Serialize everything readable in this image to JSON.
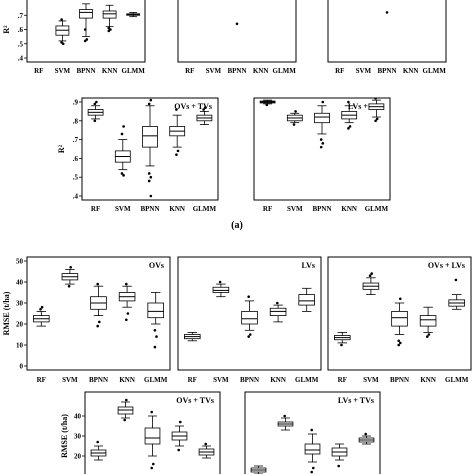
{
  "figure": {
    "caption_a": "(a)",
    "models": [
      "RF",
      "SVM",
      "BPNN",
      "KNN",
      "GLMM"
    ]
  },
  "chart_data": [
    {
      "type": "box",
      "group": "a-row1",
      "title": "",
      "ylabel": "R²",
      "ylim": [
        0.4,
        0.8
      ],
      "yticks": [
        0.4,
        0.5,
        0.6,
        0.7
      ],
      "categories": [
        "RF",
        "SVM",
        "BPNN",
        "KNN",
        "GLMM"
      ],
      "boxes": [
        null,
        {
          "min": 0.52,
          "q1": 0.56,
          "median": 0.595,
          "q3": 0.625,
          "max": 0.66,
          "outliers": [
            0.51,
            0.5,
            0.67
          ]
        },
        {
          "min": 0.55,
          "q1": 0.68,
          "median": 0.72,
          "q3": 0.74,
          "max": 0.78,
          "outliers": [
            0.52,
            0.53,
            0.6
          ]
        },
        {
          "min": 0.62,
          "q1": 0.68,
          "median": 0.71,
          "q3": 0.73,
          "max": 0.77,
          "outliers": [
            0.59,
            0.6,
            0.61
          ]
        },
        {
          "min": 0.69,
          "q1": 0.7,
          "median": 0.705,
          "q3": 0.71,
          "max": 0.72,
          "outliers": []
        }
      ]
    },
    {
      "type": "box",
      "group": "a-row1",
      "title": "",
      "ylabel": "",
      "ylim": [
        0.4,
        0.8
      ],
      "categories": [
        "RF",
        "SVM",
        "BPNN",
        "KNN",
        "GLMM"
      ],
      "boxes": [
        null,
        null,
        null,
        null,
        null
      ],
      "outliers_only": [
        {
          "cat": "BPNN",
          "y": 0.64
        }
      ]
    },
    {
      "type": "box",
      "group": "a-row1",
      "title": "",
      "ylabel": "",
      "ylim": [
        0.4,
        0.8
      ],
      "categories": [
        "RF",
        "SVM",
        "BPNN",
        "KNN",
        "GLMM"
      ],
      "boxes": [
        null,
        null,
        null,
        null,
        null
      ],
      "outliers_only": [
        {
          "cat": "BPNN",
          "y": 0.72
        }
      ]
    },
    {
      "type": "box",
      "group": "a-row2",
      "title": "OVs + TVs",
      "ylabel": "R²",
      "ylim": [
        0.4,
        0.9
      ],
      "yticks": [
        0.4,
        0.5,
        0.6,
        0.7,
        0.8,
        0.9
      ],
      "categories": [
        "RF",
        "SVM",
        "BPNN",
        "KNN",
        "GLMM"
      ],
      "boxes": [
        {
          "min": 0.81,
          "q1": 0.83,
          "median": 0.845,
          "q3": 0.86,
          "max": 0.88,
          "outliers": [
            0.89,
            0.9,
            0.8
          ]
        },
        {
          "min": 0.54,
          "q1": 0.58,
          "median": 0.61,
          "q3": 0.64,
          "max": 0.7,
          "outliers": [
            0.52,
            0.51,
            0.73,
            0.77
          ]
        },
        {
          "min": 0.56,
          "q1": 0.66,
          "median": 0.72,
          "q3": 0.77,
          "max": 0.88,
          "outliers": [
            0.89,
            0.91,
            0.52,
            0.5,
            0.48,
            0.4
          ]
        },
        {
          "min": 0.66,
          "q1": 0.72,
          "median": 0.745,
          "q3": 0.77,
          "max": 0.83,
          "outliers": [
            0.62,
            0.64,
            0.86
          ]
        },
        {
          "min": 0.78,
          "q1": 0.8,
          "median": 0.815,
          "q3": 0.83,
          "max": 0.85,
          "outliers": [
            0.86,
            0.87
          ]
        }
      ]
    },
    {
      "type": "box",
      "group": "a-row2",
      "title": "LVs + TVs",
      "ylabel": "",
      "ylim": [
        0.4,
        0.9
      ],
      "categories": [
        "RF",
        "SVM",
        "BPNN",
        "KNN",
        "GLMM"
      ],
      "boxes": [
        {
          "min": 0.89,
          "q1": 0.895,
          "median": 0.9,
          "q3": 0.905,
          "max": 0.91,
          "outliers": [
            0.885
          ]
        },
        {
          "min": 0.79,
          "q1": 0.8,
          "median": 0.815,
          "q3": 0.83,
          "max": 0.84,
          "outliers": [
            0.78,
            0.85
          ]
        },
        {
          "min": 0.73,
          "q1": 0.79,
          "median": 0.82,
          "q3": 0.84,
          "max": 0.88,
          "outliers": [
            0.66,
            0.68,
            0.7,
            0.9
          ]
        },
        {
          "min": 0.79,
          "q1": 0.81,
          "median": 0.83,
          "q3": 0.85,
          "max": 0.88,
          "outliers": [
            0.76,
            0.77,
            0.9
          ]
        },
        {
          "min": 0.82,
          "q1": 0.86,
          "median": 0.875,
          "q3": 0.89,
          "max": 0.91,
          "outliers": [
            0.8,
            0.81,
            0.92
          ]
        }
      ]
    },
    {
      "type": "box",
      "group": "b-row1",
      "title": "OVs",
      "ylabel": "RMSE (t/ha)",
      "ylim": [
        0,
        50
      ],
      "yticks": [
        0,
        10,
        20,
        30,
        40,
        50
      ],
      "categories": [
        "RF",
        "SVM",
        "BPNN",
        "KNN",
        "GLMM"
      ],
      "boxes": [
        {
          "min": 19,
          "q1": 21,
          "median": 22.5,
          "q3": 24,
          "max": 26,
          "outliers": [
            27,
            28
          ]
        },
        {
          "min": 39,
          "q1": 41,
          "median": 42.5,
          "q3": 44,
          "max": 46,
          "outliers": [
            38,
            47
          ]
        },
        {
          "min": 24,
          "q1": 27,
          "median": 30,
          "q3": 33,
          "max": 38,
          "outliers": [
            19,
            21,
            39
          ]
        },
        {
          "min": 28,
          "q1": 31,
          "median": 33,
          "q3": 35,
          "max": 38,
          "outliers": [
            22,
            25,
            39
          ]
        },
        {
          "min": 20,
          "q1": 23,
          "median": 26,
          "q3": 30,
          "max": 35,
          "outliers": [
            9,
            14,
            17
          ]
        }
      ]
    },
    {
      "type": "box",
      "group": "b-row1",
      "title": "LVs",
      "ylabel": "",
      "ylim": [
        0,
        50
      ],
      "categories": [
        "RF",
        "SVM",
        "BPNN",
        "KNN",
        "GLMM"
      ],
      "boxes": [
        {
          "min": 12,
          "q1": 13,
          "median": 14,
          "q3": 15,
          "max": 16,
          "outliers": []
        },
        {
          "min": 33,
          "q1": 35,
          "median": 36,
          "q3": 37.5,
          "max": 39,
          "outliers": [
            40
          ]
        },
        {
          "min": 17,
          "q1": 20,
          "median": 22.5,
          "q3": 26,
          "max": 31,
          "outliers": [
            14,
            15,
            33
          ]
        },
        {
          "min": 21,
          "q1": 24,
          "median": 26,
          "q3": 27.5,
          "max": 29,
          "outliers": [
            30
          ]
        },
        {
          "min": 26,
          "q1": 29,
          "median": 31,
          "q3": 34,
          "max": 37,
          "outliers": []
        }
      ]
    },
    {
      "type": "box",
      "group": "b-row1",
      "title": "OVs + LVs",
      "ylabel": "",
      "ylim": [
        0,
        50
      ],
      "categories": [
        "RF",
        "SVM",
        "BPNN",
        "KNN",
        "GLMM"
      ],
      "boxes": [
        {
          "min": 11,
          "q1": 12.5,
          "median": 13.5,
          "q3": 14.5,
          "max": 16,
          "outliers": [
            10
          ]
        },
        {
          "min": 34,
          "q1": 36.5,
          "median": 38,
          "q3": 39.5,
          "max": 42,
          "outliers": [
            43,
            44
          ]
        },
        {
          "min": 15,
          "q1": 19,
          "median": 23,
          "q3": 26,
          "max": 30,
          "outliers": [
            10,
            11,
            12,
            32
          ]
        },
        {
          "min": 16,
          "q1": 19,
          "median": 22,
          "q3": 24,
          "max": 28,
          "outliers": [
            14,
            15
          ]
        },
        {
          "min": 27,
          "q1": 28.5,
          "median": 30,
          "q3": 31.5,
          "max": 34,
          "outliers": [
            41
          ]
        }
      ]
    },
    {
      "type": "box",
      "group": "b-row2",
      "title": "OVs + TVs",
      "ylabel": "RMSE (t/ha)",
      "ylim": [
        10,
        50
      ],
      "yticks": [
        20,
        30,
        40
      ],
      "categories": [
        "RF",
        "SVM",
        "BPNN",
        "KNN",
        "GLMM"
      ],
      "boxes": [
        {
          "min": 18,
          "q1": 20,
          "median": 21.5,
          "q3": 23,
          "max": 25,
          "outliers": [
            27
          ]
        },
        {
          "min": 39,
          "q1": 41,
          "median": 43,
          "q3": 44.5,
          "max": 47,
          "outliers": [
            38,
            48
          ]
        },
        {
          "min": 20,
          "q1": 26,
          "median": 29,
          "q3": 34,
          "max": 40,
          "outliers": [
            14,
            16,
            42
          ]
        },
        {
          "min": 25,
          "q1": 28,
          "median": 30,
          "q3": 32,
          "max": 35,
          "outliers": [
            23,
            37
          ]
        },
        {
          "min": 19,
          "q1": 20.5,
          "median": 22,
          "q3": 23.5,
          "max": 25,
          "outliers": [
            26
          ]
        }
      ]
    },
    {
      "type": "box",
      "group": "b-row2",
      "title": "LVs + TVs",
      "ylabel": "",
      "ylim": [
        10,
        50
      ],
      "categories": [
        "RF",
        "SVM",
        "BPNN",
        "KNN",
        "GLMM"
      ],
      "boxes": [
        {
          "min": 11,
          "q1": 12,
          "median": 13,
          "q3": 14,
          "max": 15,
          "outliers": []
        },
        {
          "min": 33,
          "q1": 35,
          "median": 36,
          "q3": 37,
          "max": 39,
          "outliers": [
            40
          ]
        },
        {
          "min": 17,
          "q1": 21,
          "median": 23,
          "q3": 26,
          "max": 31,
          "outliers": [
            12,
            14,
            33
          ]
        },
        {
          "min": 18,
          "q1": 20,
          "median": 22,
          "q3": 24,
          "max": 26,
          "outliers": [
            15
          ]
        },
        {
          "min": 26,
          "q1": 27,
          "median": 28,
          "q3": 29,
          "max": 30,
          "outliers": [
            31
          ]
        }
      ]
    }
  ]
}
